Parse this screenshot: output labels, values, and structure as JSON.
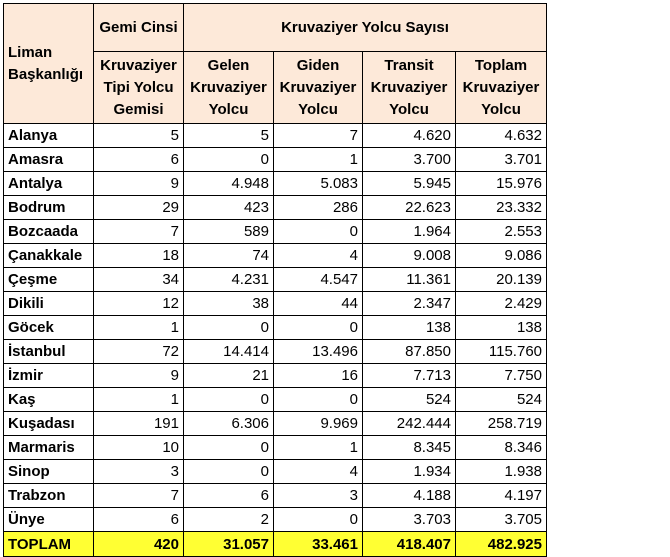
{
  "headers": {
    "port": "Liman Başkanlığı",
    "ship_type_group": "Gemi Cinsi",
    "ship_type": "Kruvaziyer Tipi Yolcu Gemisi",
    "passenger_group": "Kruvaziyer Yolcu Sayısı",
    "arriving": "Gelen Kruvaziyer Yolcu",
    "departing": "Giden Kruvaziyer Yolcu",
    "transit": "Transit Kruvaziyer Yolcu",
    "total": "Toplam Kruvaziyer Yolcu"
  },
  "rows": [
    {
      "name": "Alanya",
      "ships": "5",
      "arriving": "5",
      "departing": "7",
      "transit": "4.620",
      "total": "4.632"
    },
    {
      "name": "Amasra",
      "ships": "6",
      "arriving": "0",
      "departing": "1",
      "transit": "3.700",
      "total": "3.701"
    },
    {
      "name": "Antalya",
      "ships": "9",
      "arriving": "4.948",
      "departing": "5.083",
      "transit": "5.945",
      "total": "15.976"
    },
    {
      "name": "Bodrum",
      "ships": "29",
      "arriving": "423",
      "departing": "286",
      "transit": "22.623",
      "total": "23.332"
    },
    {
      "name": "Bozcaada",
      "ships": "7",
      "arriving": "589",
      "departing": "0",
      "transit": "1.964",
      "total": "2.553"
    },
    {
      "name": "Çanakkale",
      "ships": "18",
      "arriving": "74",
      "departing": "4",
      "transit": "9.008",
      "total": "9.086"
    },
    {
      "name": "Çeşme",
      "ships": "34",
      "arriving": "4.231",
      "departing": "4.547",
      "transit": "11.361",
      "total": "20.139"
    },
    {
      "name": "Dikili",
      "ships": "12",
      "arriving": "38",
      "departing": "44",
      "transit": "2.347",
      "total": "2.429"
    },
    {
      "name": "Göcek",
      "ships": "1",
      "arriving": "0",
      "departing": "0",
      "transit": "138",
      "total": "138"
    },
    {
      "name": "İstanbul",
      "ships": "72",
      "arriving": "14.414",
      "departing": "13.496",
      "transit": "87.850",
      "total": "115.760"
    },
    {
      "name": "İzmir",
      "ships": "9",
      "arriving": "21",
      "departing": "16",
      "transit": "7.713",
      "total": "7.750"
    },
    {
      "name": "Kaş",
      "ships": "1",
      "arriving": "0",
      "departing": "0",
      "transit": "524",
      "total": "524"
    },
    {
      "name": "Kuşadası",
      "ships": "191",
      "arriving": "6.306",
      "departing": "9.969",
      "transit": "242.444",
      "total": "258.719"
    },
    {
      "name": "Marmaris",
      "ships": "10",
      "arriving": "0",
      "departing": "1",
      "transit": "8.345",
      "total": "8.346"
    },
    {
      "name": "Sinop",
      "ships": "3",
      "arriving": "0",
      "departing": "4",
      "transit": "1.934",
      "total": "1.938"
    },
    {
      "name": "Trabzon",
      "ships": "7",
      "arriving": "6",
      "departing": "3",
      "transit": "4.188",
      "total": "4.197"
    },
    {
      "name": "Ünye",
      "ships": "6",
      "arriving": "2",
      "departing": "0",
      "transit": "3.703",
      "total": "3.705"
    }
  ],
  "totals": {
    "name": "TOPLAM",
    "ships": "420",
    "arriving": "31.057",
    "departing": "33.461",
    "transit": "418.407",
    "total": "482.925"
  },
  "colors": {
    "header_bg": "#fde9d9",
    "total_bg": "#ffff33"
  }
}
